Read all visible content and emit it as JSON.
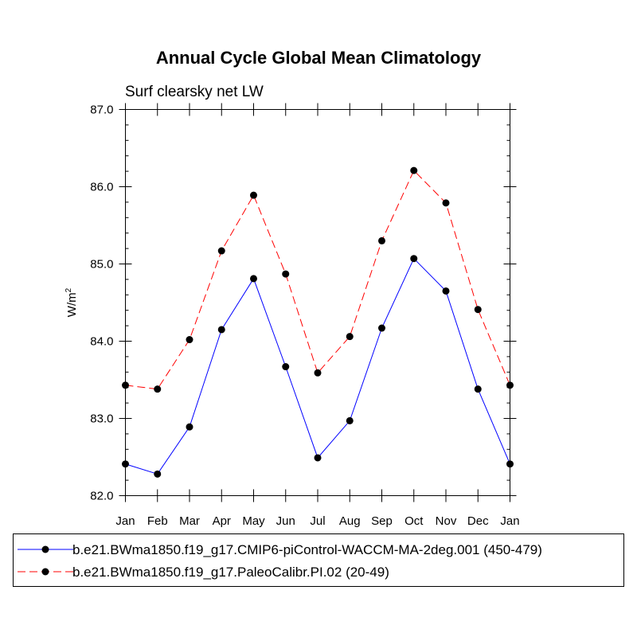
{
  "chart_data": {
    "type": "line",
    "title": "Annual Cycle Global Mean Climatology",
    "subtitle": "Surf clearsky net LW",
    "xlabel": "",
    "ylabel_base": "W/m",
    "ylabel_sup": "2",
    "categories": [
      "Jan",
      "Feb",
      "Mar",
      "Apr",
      "May",
      "Jun",
      "Jul",
      "Aug",
      "Sep",
      "Oct",
      "Nov",
      "Dec",
      "Jan"
    ],
    "ylim": [
      82.0,
      87.0
    ],
    "yticks": [
      "82.0",
      "83.0",
      "84.0",
      "85.0",
      "86.0",
      "87.0"
    ],
    "grid": false,
    "legend_position": "bottom",
    "series": [
      {
        "name": "b.e21.BWma1850.f19_g17.CMIP6-piControl-WACCM-MA-2deg.001 (450-479)",
        "color": "#0000ff",
        "style": "solid",
        "values": [
          82.41,
          82.28,
          82.89,
          84.15,
          84.81,
          83.67,
          82.49,
          82.97,
          84.17,
          85.07,
          84.65,
          83.38,
          82.41
        ]
      },
      {
        "name": "b.e21.BWma1850.f19_g17.PaleoCalibr.PI.02 (20-49)",
        "color": "#ff0000",
        "style": "dashed",
        "values": [
          83.43,
          83.38,
          84.02,
          85.17,
          85.89,
          84.87,
          83.59,
          84.06,
          85.3,
          86.21,
          85.79,
          84.41,
          83.43
        ]
      }
    ]
  }
}
